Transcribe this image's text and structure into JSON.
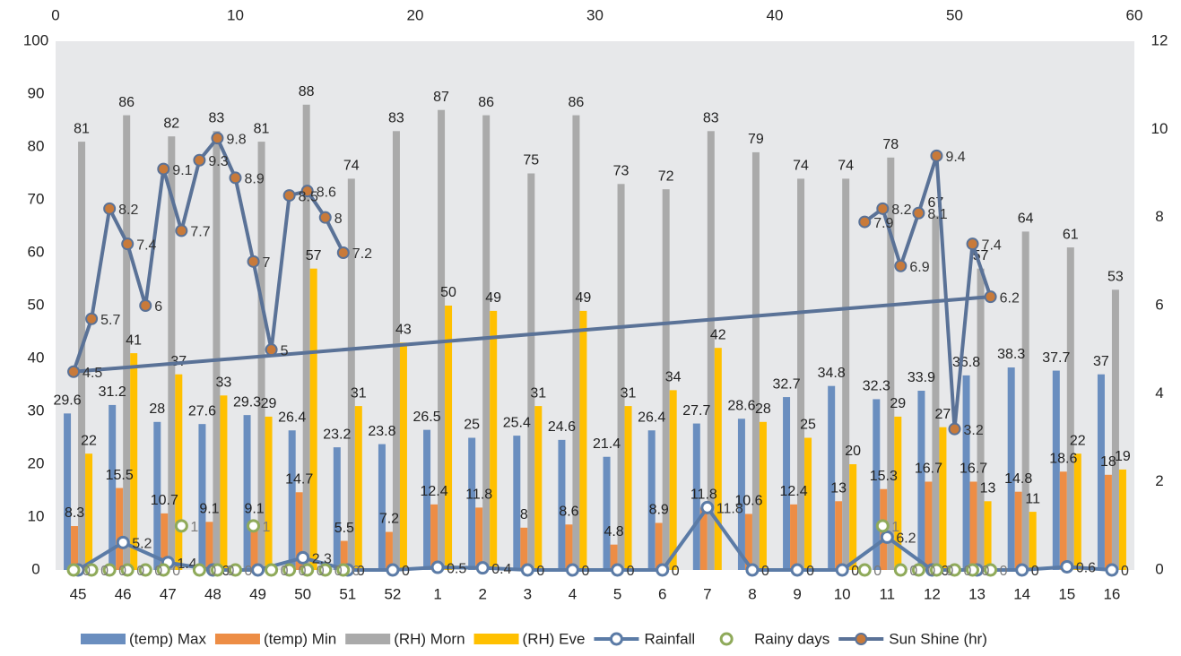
{
  "chart_data": {
    "type": "combo",
    "categories": [
      "45",
      "46",
      "47",
      "48",
      "49",
      "50",
      "51",
      "52",
      "1",
      "2",
      "3",
      "4",
      "5",
      "6",
      "7",
      "8",
      "9",
      "10",
      "11",
      "12",
      "13",
      "14",
      "15",
      "16"
    ],
    "ylim": [
      0,
      100
    ],
    "yticks": [
      0,
      10,
      20,
      30,
      40,
      50,
      60,
      70,
      80,
      90,
      100
    ],
    "y2lim": [
      0,
      12
    ],
    "y2ticks": [
      0,
      2,
      4,
      6,
      8,
      10,
      12
    ],
    "x2lim": [
      0,
      60
    ],
    "x2ticks": [
      0,
      10,
      20,
      30,
      40,
      50,
      60
    ],
    "plot_background": "#e7e8ea",
    "series": [
      {
        "name": "(temp) Max",
        "type": "bar",
        "color": "#6a8ebf",
        "values": [
          29.6,
          31.2,
          28,
          27.6,
          29.3,
          26.4,
          23.2,
          23.8,
          26.5,
          25,
          25.4,
          24.6,
          21.4,
          26.4,
          27.7,
          28.6,
          32.7,
          34.8,
          32.3,
          33.9,
          36.8,
          38.3,
          37.7,
          37
        ]
      },
      {
        "name": "(temp) Min",
        "type": "bar",
        "color": "#ed8d45",
        "values": [
          8.3,
          15.5,
          10.7,
          9.1,
          9.1,
          14.7,
          5.5,
          7.2,
          12.4,
          11.8,
          8,
          8.6,
          4.8,
          8.9,
          11.8,
          10.6,
          12.4,
          13,
          15.3,
          16.7,
          16.7,
          14.8,
          18.6,
          18
        ]
      },
      {
        "name": "(RH) Morn",
        "type": "bar",
        "color": "#aaaaaa",
        "values": [
          81,
          86,
          82,
          83,
          81,
          88,
          74,
          83,
          87,
          86,
          75,
          86,
          73,
          72,
          83,
          79,
          74,
          74,
          78,
          67,
          57,
          64,
          61,
          53
        ]
      },
      {
        "name": "(RH) Eve",
        "type": "bar",
        "color": "#ffc000",
        "values": [
          22,
          41,
          37,
          33,
          29,
          57,
          31,
          43,
          50,
          49,
          31,
          49,
          31,
          34,
          42,
          28,
          25,
          20,
          29,
          27,
          13,
          11,
          22,
          19
        ]
      },
      {
        "name": "Rainfall",
        "type": "line",
        "color": "#5b7ba6",
        "values": [
          0,
          5.2,
          1.4,
          0,
          0,
          2.3,
          0,
          0,
          0.5,
          0.4,
          0,
          0,
          0,
          0,
          11.8,
          0,
          0,
          0,
          6.2,
          0,
          0,
          0,
          0.6,
          0
        ]
      },
      {
        "name": "Rainy days",
        "type": "scatter",
        "axis": "y2",
        "xaxis": "x2",
        "color": "#8faa5a",
        "x": [
          1,
          2,
          3,
          4,
          5,
          6,
          7,
          8,
          9,
          10,
          11,
          12,
          13,
          14,
          15,
          16,
          17,
          18,
          19,
          20,
          21,
          22,
          23,
          24,
          25,
          26,
          27,
          28,
          29,
          30,
          31,
          32,
          33,
          34,
          35,
          36,
          37,
          38,
          39,
          40,
          41,
          42,
          43,
          44,
          45,
          46,
          47,
          48,
          49,
          50,
          51,
          52
        ],
        "values": [
          0,
          0,
          0,
          0,
          0,
          0,
          1,
          0,
          0,
          0,
          1,
          0,
          0,
          0,
          0,
          0,
          null,
          null,
          null,
          null,
          null,
          null,
          null,
          null,
          null,
          null,
          null,
          null,
          null,
          null,
          null,
          null,
          null,
          null,
          null,
          null,
          null,
          null,
          null,
          null,
          null,
          null,
          null,
          null,
          0,
          1,
          0,
          0,
          0,
          0,
          0,
          0
        ]
      },
      {
        "name": "Sun Shine (hr)",
        "type": "line",
        "axis": "y2",
        "xaxis": "x2",
        "color": "#5a7297",
        "marker_color": "#c87a3a",
        "trendline": true,
        "x": [
          1,
          2,
          3,
          4,
          5,
          6,
          7,
          8,
          9,
          10,
          11,
          12,
          13,
          14,
          15,
          16,
          17,
          18,
          19,
          20,
          21,
          22,
          23,
          24,
          25,
          26,
          27,
          28,
          29,
          30,
          31,
          32,
          33,
          34,
          35,
          36,
          37,
          38,
          39,
          40,
          41,
          42,
          43,
          44,
          45,
          46,
          47,
          48,
          49,
          50,
          51,
          52
        ],
        "values": [
          4.5,
          5.7,
          8.2,
          7.4,
          6,
          9.1,
          7.7,
          9.3,
          9.8,
          8.9,
          7,
          5,
          8.5,
          8.6,
          8,
          7.2,
          null,
          null,
          null,
          null,
          null,
          null,
          null,
          null,
          null,
          null,
          null,
          null,
          null,
          null,
          null,
          null,
          null,
          null,
          null,
          null,
          null,
          null,
          null,
          null,
          null,
          null,
          null,
          null,
          7.9,
          8.2,
          6.9,
          8.1,
          9.4,
          3.2,
          7.4,
          6.2
        ]
      }
    ]
  }
}
